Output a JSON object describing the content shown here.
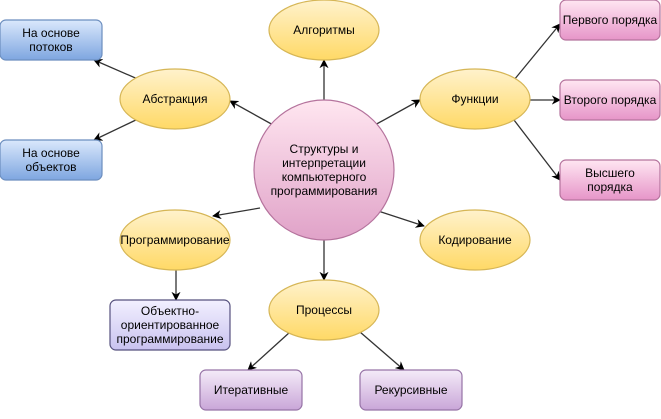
{
  "colors": {
    "center_fill_top": "#ffe6f0",
    "center_fill_bottom": "#e0a2c8",
    "center_stroke": "#b5739d",
    "topic_fill_top": "#fff2cc",
    "topic_fill_bottom": "#ffd966",
    "topic_stroke": "#d6b656",
    "blue_fill_top": "#dae8fc",
    "blue_fill_bottom": "#7ea6e0",
    "blue_stroke": "#6c8ebf",
    "pink_fill_top": "#ffe6f2",
    "pink_fill_bottom": "#e695c8",
    "pink_stroke": "#b5739d",
    "purple_fill_top": "#f4ebf8",
    "purple_fill_bottom": "#c9a6d8",
    "purple_stroke": "#9673a6",
    "lavender_fill_top": "#f2f0ff",
    "lavender_fill_bottom": "#c9c2ef",
    "lavender_stroke": "#56517e",
    "edge": "#333333"
  },
  "nodes": {
    "center": {
      "label": "Структуры и интерпретации компьютерного программирования"
    },
    "algorithms": {
      "label": "Алгоритмы"
    },
    "abstraction": {
      "label": "Абстракция"
    },
    "functions": {
      "label": "Функции"
    },
    "programming": {
      "label": "Программирование"
    },
    "coding": {
      "label": "Кодирование"
    },
    "processes": {
      "label": "Процессы"
    },
    "stream_based": {
      "label": "На основе\nпотоков"
    },
    "object_based": {
      "label": "На основе\nобъектов"
    },
    "first_order": {
      "label": "Первого порядка"
    },
    "second_order": {
      "label": "Второго порядка"
    },
    "higher_order": {
      "label": "Высшего\nпорядка"
    },
    "oop": {
      "label": "Объектно-\nориентированное\nпрограммирование"
    },
    "iterative": {
      "label": "Итеративные"
    },
    "recursive": {
      "label": "Рекурсивные"
    }
  }
}
